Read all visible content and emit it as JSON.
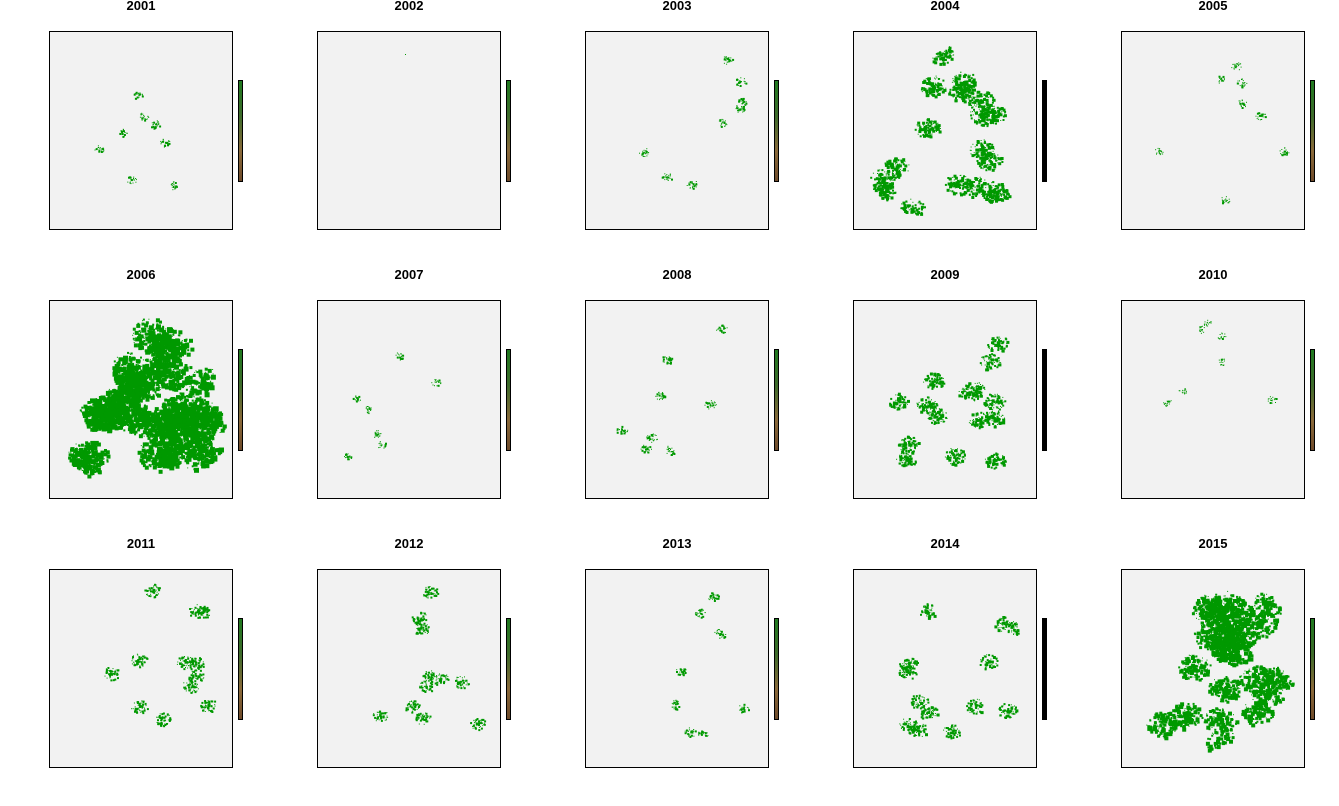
{
  "chart_data": [
    {
      "type": "heatmap",
      "title": "2001",
      "coverage": 0.04,
      "seed": 11,
      "colorbar_style": "gradient"
    },
    {
      "type": "heatmap",
      "title": "2002",
      "coverage": 0.0,
      "seed": 23,
      "colorbar_style": "gradient"
    },
    {
      "type": "heatmap",
      "title": "2003",
      "coverage": 0.05,
      "seed": 37,
      "colorbar_style": "gradient"
    },
    {
      "type": "heatmap",
      "title": "2004",
      "coverage": 0.3,
      "seed": 41,
      "colorbar_style": "solid"
    },
    {
      "type": "heatmap",
      "title": "2005",
      "coverage": 0.04,
      "seed": 53,
      "colorbar_style": "gradient"
    },
    {
      "type": "heatmap",
      "title": "2006",
      "coverage": 0.55,
      "seed": 67,
      "colorbar_style": "gradient"
    },
    {
      "type": "heatmap",
      "title": "2007",
      "coverage": 0.03,
      "seed": 71,
      "colorbar_style": "gradient"
    },
    {
      "type": "heatmap",
      "title": "2008",
      "coverage": 0.06,
      "seed": 83,
      "colorbar_style": "gradient"
    },
    {
      "type": "heatmap",
      "title": "2009",
      "coverage": 0.22,
      "seed": 97,
      "colorbar_style": "solid"
    },
    {
      "type": "heatmap",
      "title": "2010",
      "coverage": 0.02,
      "seed": 101,
      "colorbar_style": "gradient"
    },
    {
      "type": "heatmap",
      "title": "2011",
      "coverage": 0.15,
      "seed": 113,
      "colorbar_style": "gradient"
    },
    {
      "type": "heatmap",
      "title": "2012",
      "coverage": 0.13,
      "seed": 127,
      "colorbar_style": "gradient"
    },
    {
      "type": "heatmap",
      "title": "2013",
      "coverage": 0.06,
      "seed": 131,
      "colorbar_style": "gradient"
    },
    {
      "type": "heatmap",
      "title": "2014",
      "coverage": 0.18,
      "seed": 139,
      "colorbar_style": "solid"
    },
    {
      "type": "heatmap",
      "title": "2015",
      "coverage": 0.42,
      "seed": 149,
      "colorbar_style": "gradient"
    }
  ],
  "colors": {
    "burned": "#009900",
    "background": "#f2f2f2",
    "frame": "#000000"
  }
}
